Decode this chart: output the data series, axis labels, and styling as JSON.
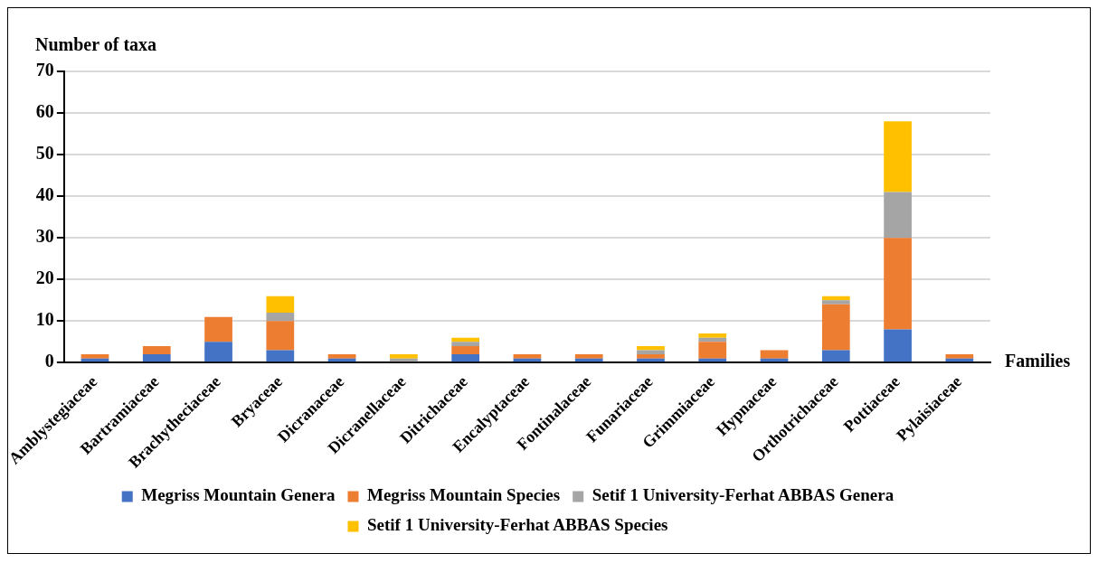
{
  "chart_data": {
    "type": "bar",
    "stacked": true,
    "xlabel": "Families",
    "ylabel": "Number of taxa",
    "categories": [
      "Amblystegiaceae",
      "Bartramiaceae",
      "Brachytheciaceae",
      "Bryaceae",
      "Dicranaceae",
      "Dicranellaceae",
      "Ditrichaceae",
      "Encalyptaceae",
      "Fontinalaceae",
      "Funariaceae",
      "Grimmiaceae",
      "Hypnaceae",
      "Orthotrichaceae",
      "Pottiaceae",
      "Pylaisiaceae"
    ],
    "series": [
      {
        "name": "Megriss Mountain Genera",
        "color": "#4472c4",
        "values": [
          1,
          2,
          5,
          3,
          1,
          0,
          2,
          1,
          1,
          1,
          1,
          1,
          3,
          8,
          1
        ]
      },
      {
        "name": "Megriss Mountain Species",
        "color": "#ed7d31",
        "values": [
          1,
          2,
          6,
          7,
          1,
          0,
          2,
          1,
          1,
          1,
          4,
          2,
          11,
          22,
          1
        ]
      },
      {
        "name": "Setif 1 University-Ferhat ABBAS Genera",
        "color": "#a5a5a5",
        "values": [
          0,
          0,
          0,
          2,
          0,
          1,
          1,
          0,
          0,
          1,
          1,
          0,
          1,
          11,
          0
        ]
      },
      {
        "name": "Setif 1 University-Ferhat ABBAS Species",
        "color": "#ffc000",
        "values": [
          0,
          0,
          0,
          4,
          0,
          1,
          1,
          0,
          0,
          1,
          1,
          0,
          1,
          17,
          0
        ]
      }
    ],
    "ylim": [
      0,
      70
    ],
    "yticks": [
      0,
      10,
      20,
      30,
      40,
      50,
      60,
      70
    ],
    "grid": "y",
    "legend": "bottom"
  }
}
